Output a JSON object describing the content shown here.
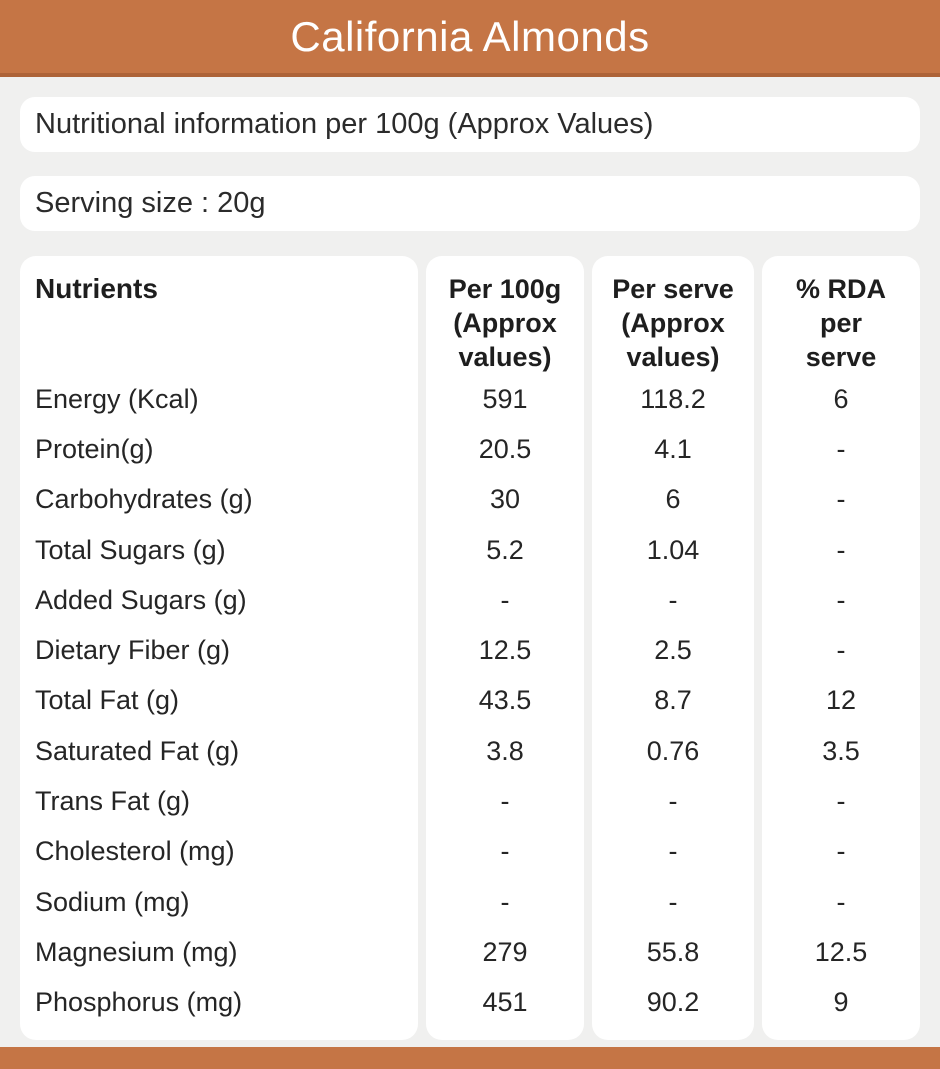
{
  "colors": {
    "accent": "#c57545",
    "accent_dark": "#ad6338",
    "background": "#f0f0ef",
    "card": "#ffffff",
    "text": "#252525",
    "title_text": "#ffffff"
  },
  "header": {
    "title": "California Almonds"
  },
  "info_bar": {
    "text": "Nutritional information per 100g (Approx Values)"
  },
  "serving_bar": {
    "text": "Serving size : 20g"
  },
  "chart_data": {
    "type": "table",
    "title": "California Almonds",
    "subtitle": "Nutritional information per 100g (Approx Values)",
    "serving_size": "20g",
    "columns": [
      "Nutrients",
      "Per 100g (Approx values)",
      "Per serve (Approx values)",
      "% RDA per serve"
    ],
    "column_header_lines": [
      [
        "Nutrients"
      ],
      [
        "Per 100g",
        "(Approx",
        "values)"
      ],
      [
        "Per serve",
        "(Approx",
        "values)"
      ],
      [
        "% RDA",
        "per",
        "serve"
      ]
    ],
    "rows": [
      [
        "Energy (Kcal)",
        "591",
        "118.2",
        "6"
      ],
      [
        "Protein(g)",
        "20.5",
        "4.1",
        "-"
      ],
      [
        "Carbohydrates (g)",
        "30",
        "6",
        "-"
      ],
      [
        "Total Sugars (g)",
        "5.2",
        "1.04",
        "-"
      ],
      [
        "Added Sugars (g)",
        "-",
        "-",
        "-"
      ],
      [
        "Dietary Fiber (g)",
        "12.5",
        "2.5",
        "-"
      ],
      [
        "Total Fat (g)",
        "43.5",
        "8.7",
        "12"
      ],
      [
        "Saturated Fat (g)",
        "3.8",
        "0.76",
        "3.5"
      ],
      [
        "Trans Fat (g)",
        "-",
        "-",
        "-"
      ],
      [
        "Cholesterol (mg)",
        "-",
        "-",
        "-"
      ],
      [
        "Sodium (mg)",
        "-",
        "-",
        "-"
      ],
      [
        "Magnesium (mg)",
        "279",
        "55.8",
        "12.5"
      ],
      [
        "Phosphorus (mg)",
        "451",
        "90.2",
        "9"
      ]
    ]
  }
}
